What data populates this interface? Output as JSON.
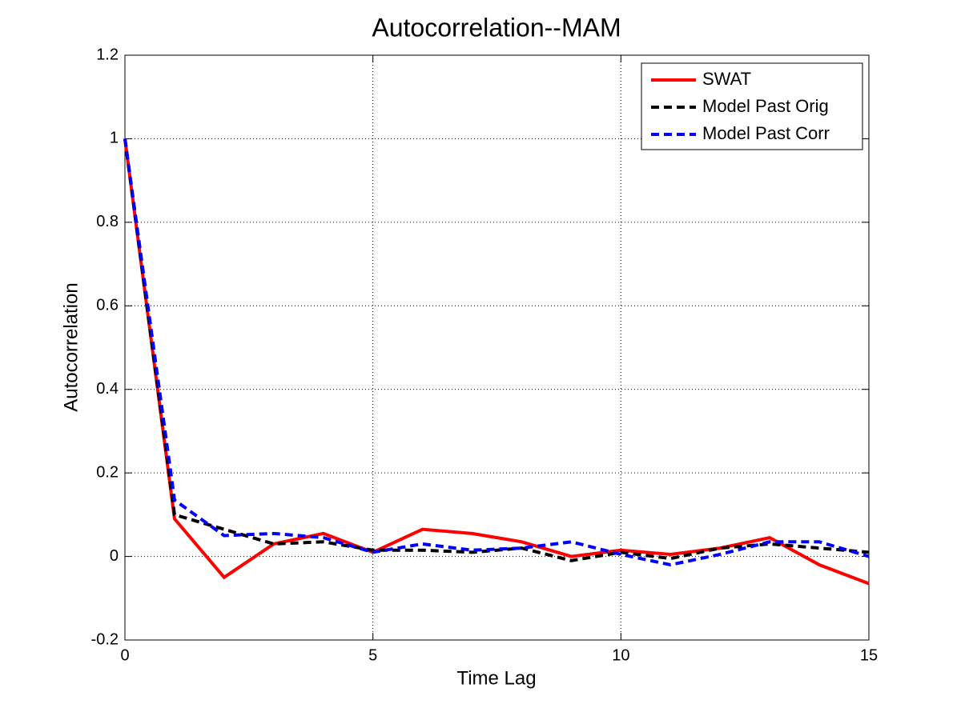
{
  "chart_data": {
    "type": "line",
    "title": "Autocorrelation--MAM",
    "xlabel": "Time Lag",
    "ylabel": "Autocorrelation",
    "x": [
      0,
      1,
      2,
      3,
      4,
      5,
      6,
      7,
      8,
      9,
      10,
      11,
      12,
      13,
      14,
      15
    ],
    "series": [
      {
        "name": "SWAT",
        "color": "#ff0000",
        "dash": "solid",
        "values": [
          1,
          0.09,
          -0.05,
          0.03,
          0.055,
          0.01,
          0.065,
          0.055,
          0.035,
          0.0,
          0.015,
          0.005,
          0.02,
          0.045,
          -0.02,
          -0.065
        ]
      },
      {
        "name": "Model Past Orig",
        "color": "#000000",
        "dash": "dashed",
        "values": [
          1,
          0.1,
          0.065,
          0.03,
          0.035,
          0.015,
          0.015,
          0.01,
          0.02,
          -0.01,
          0.01,
          -0.005,
          0.02,
          0.03,
          0.02,
          0.01
        ]
      },
      {
        "name": "Model Past Corr",
        "color": "#0000ff",
        "dash": "dashed",
        "values": [
          1,
          0.135,
          0.05,
          0.055,
          0.045,
          0.01,
          0.03,
          0.015,
          0.02,
          0.035,
          0.005,
          -0.02,
          0.005,
          0.035,
          0.035,
          0.0
        ]
      }
    ],
    "xlim": [
      0,
      15
    ],
    "xticks": [
      0,
      5,
      10,
      15
    ],
    "ylim": [
      -0.2,
      1.2
    ],
    "yticks": [
      -0.2,
      0,
      0.2,
      0.4,
      0.6,
      0.8,
      1,
      1.2
    ],
    "grid": true,
    "legend": "upper right"
  }
}
